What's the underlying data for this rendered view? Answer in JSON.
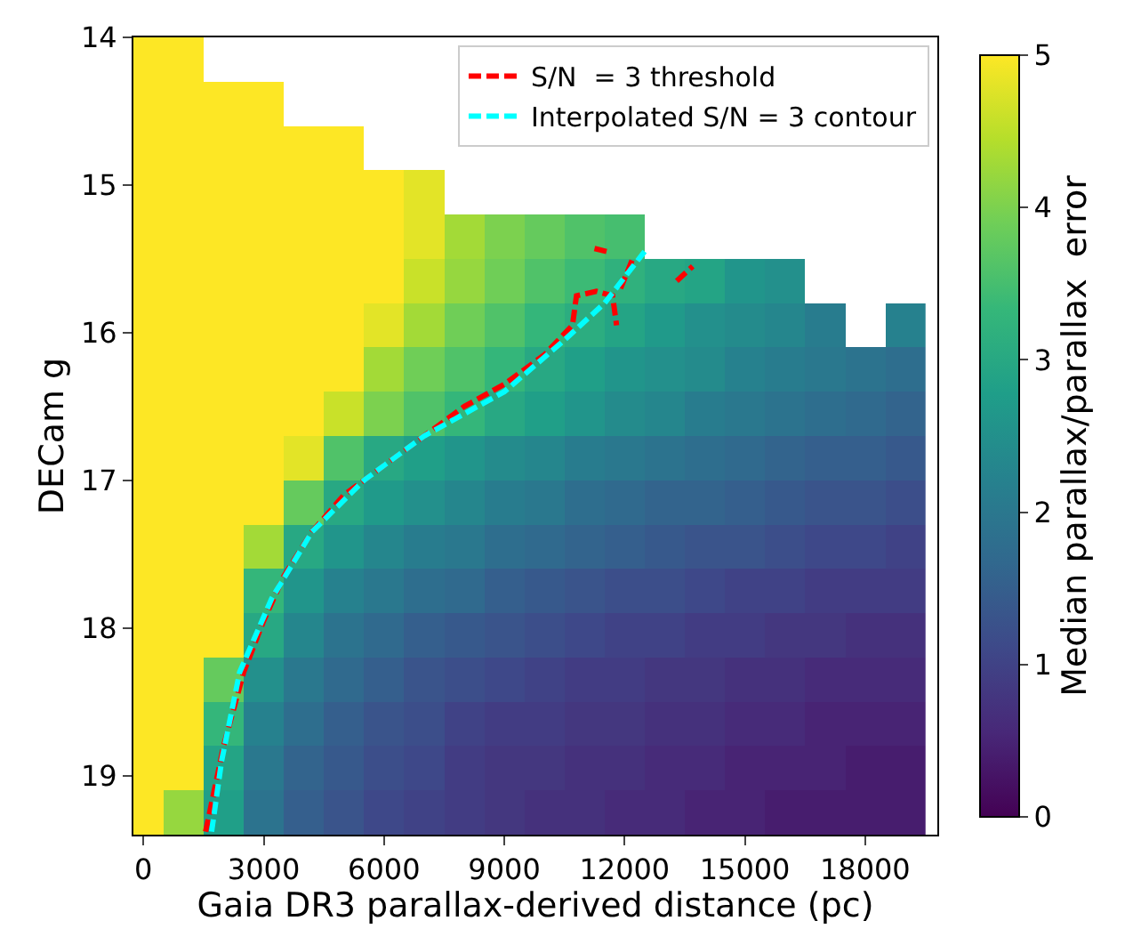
{
  "chart_data": {
    "type": "heatmap",
    "xlabel": "Gaia DR3 parallax-derived distance (pc)",
    "ylabel": "DECam g",
    "clabel": "Median parallax/parallax  error",
    "x": [
      0,
      1000,
      2000,
      3000,
      4000,
      5000,
      6000,
      7000,
      8000,
      9000,
      10000,
      11000,
      12000,
      13000,
      14000,
      15000,
      16000,
      17000,
      18000,
      19000
    ],
    "y": [
      14.15,
      14.45,
      14.75,
      15.05,
      15.35,
      15.65,
      15.95,
      16.25,
      16.55,
      16.85,
      17.15,
      17.45,
      17.75,
      18.05,
      18.35,
      18.65,
      18.95,
      19.25
    ],
    "cells": [
      [
        5,
        5,
        null,
        null,
        null,
        null,
        null,
        null,
        null,
        null,
        null,
        null,
        null,
        null,
        null,
        null,
        null,
        null,
        null,
        null
      ],
      [
        5,
        5,
        5,
        5,
        null,
        null,
        null,
        null,
        null,
        null,
        null,
        null,
        null,
        null,
        null,
        null,
        null,
        null,
        null,
        null
      ],
      [
        5,
        5,
        5,
        5,
        5,
        5,
        null,
        null,
        null,
        null,
        null,
        null,
        null,
        null,
        null,
        null,
        null,
        null,
        null,
        null
      ],
      [
        5,
        5,
        5,
        5,
        5,
        5,
        5,
        4.8,
        null,
        null,
        null,
        null,
        null,
        null,
        null,
        null,
        null,
        null,
        null,
        null
      ],
      [
        5,
        5,
        5,
        5,
        5,
        5,
        5,
        4.8,
        4.3,
        4.0,
        3.8,
        3.6,
        3.5,
        null,
        null,
        null,
        null,
        null,
        null,
        null
      ],
      [
        5,
        5,
        5,
        5,
        5,
        5,
        5,
        4.6,
        4.2,
        3.9,
        3.6,
        3.4,
        3.2,
        3.0,
        2.9,
        2.6,
        2.5,
        null,
        null,
        null
      ],
      [
        5,
        5,
        5,
        5,
        5,
        5,
        4.8,
        4.3,
        3.9,
        3.6,
        3.3,
        3.1,
        2.9,
        2.7,
        2.5,
        2.4,
        2.3,
        2.1,
        null,
        2.2
      ],
      [
        5,
        5,
        5,
        5,
        5,
        5,
        4.3,
        3.9,
        3.6,
        3.3,
        3.0,
        2.8,
        2.6,
        2.5,
        2.4,
        2.2,
        2.1,
        2.0,
        1.9,
        1.8
      ],
      [
        5,
        5,
        5,
        5,
        5,
        4.6,
        4.0,
        3.6,
        3.3,
        3.0,
        2.8,
        2.6,
        2.4,
        2.3,
        2.1,
        2.0,
        1.9,
        1.8,
        1.7,
        1.6
      ],
      [
        5,
        5,
        5,
        5,
        4.8,
        3.6,
        3.0,
        2.8,
        2.6,
        2.4,
        2.3,
        2.1,
        2.0,
        1.9,
        1.8,
        1.7,
        1.6,
        1.5,
        1.5,
        1.4
      ],
      [
        5,
        5,
        5,
        5,
        3.8,
        3.0,
        2.7,
        2.5,
        2.3,
        2.1,
        2.0,
        1.8,
        1.7,
        1.6,
        1.6,
        1.5,
        1.4,
        1.3,
        1.3,
        1.2
      ],
      [
        5,
        5,
        5,
        4.3,
        3.0,
        2.6,
        2.3,
        2.1,
        2.0,
        1.8,
        1.7,
        1.6,
        1.5,
        1.4,
        1.3,
        1.3,
        1.2,
        1.1,
        1.1,
        1.0
      ],
      [
        5,
        5,
        5,
        3.3,
        2.6,
        2.2,
        2.0,
        1.8,
        1.7,
        1.5,
        1.4,
        1.3,
        1.2,
        1.2,
        1.1,
        1.0,
        1.0,
        0.9,
        0.9,
        0.9
      ],
      [
        5,
        5,
        5,
        3.0,
        2.3,
        1.9,
        1.7,
        1.5,
        1.4,
        1.3,
        1.2,
        1.1,
        1.0,
        1.0,
        0.9,
        0.9,
        0.8,
        0.8,
        0.7,
        0.7
      ],
      [
        5,
        5,
        3.8,
        2.5,
        2.0,
        1.7,
        1.5,
        1.3,
        1.2,
        1.1,
        1.0,
        0.9,
        0.9,
        0.8,
        0.8,
        0.7,
        0.7,
        0.6,
        0.6,
        0.6
      ],
      [
        5,
        5,
        3.3,
        2.2,
        1.8,
        1.5,
        1.3,
        1.2,
        1.0,
        0.9,
        0.9,
        0.8,
        0.8,
        0.7,
        0.7,
        0.6,
        0.6,
        0.5,
        0.5,
        0.5
      ],
      [
        5,
        5,
        2.9,
        2.0,
        1.6,
        1.4,
        1.2,
        1.1,
        0.9,
        0.8,
        0.8,
        0.7,
        0.7,
        0.6,
        0.6,
        0.5,
        0.5,
        0.5,
        0.4,
        0.4
      ],
      [
        5,
        4.2,
        2.8,
        1.9,
        1.5,
        1.3,
        1.1,
        1.0,
        0.9,
        0.8,
        0.7,
        0.7,
        0.6,
        0.6,
        0.5,
        0.5,
        0.4,
        0.4,
        0.4,
        0.4
      ]
    ],
    "clim": [
      0,
      5
    ],
    "cticks": [
      0,
      1,
      2,
      3,
      4,
      5
    ],
    "xlim": [
      -250,
      19800
    ],
    "xticks": [
      0,
      3000,
      6000,
      9000,
      12000,
      15000,
      18000
    ],
    "ylim": [
      19.4,
      14
    ],
    "yticks": [
      14,
      15,
      16,
      17,
      18,
      19
    ],
    "series": [
      {
        "name": "S/N  = 3 threshold",
        "type": "line",
        "color": "#ff0000",
        "line_style": "dashed",
        "x": [
          1550,
          2000,
          2500,
          3000,
          3500,
          4200,
          5000,
          6000,
          7000,
          8000,
          9000,
          10000,
          10700,
          10800,
          11300,
          11700,
          11800,
          null,
          11250,
          11550,
          null,
          11900,
          12200,
          null,
          13300,
          13700
        ],
        "values": [
          19.38,
          18.8,
          18.3,
          17.95,
          17.65,
          17.35,
          17.1,
          16.9,
          16.7,
          16.5,
          16.35,
          16.15,
          15.95,
          15.75,
          15.72,
          15.75,
          15.95,
          null,
          15.43,
          15.45,
          null,
          15.7,
          15.5,
          null,
          15.65,
          15.55
        ]
      },
      {
        "name": "Interpolated S/N = 3 contour",
        "type": "line",
        "color": "#00ffff",
        "line_style": "dashed",
        "x": [
          1700,
          1950,
          2400,
          3200,
          4200,
          5500,
          7000,
          9000,
          10500,
          11500,
          12500
        ],
        "values": [
          19.38,
          18.9,
          18.3,
          17.8,
          17.35,
          17.0,
          16.7,
          16.4,
          16.05,
          15.8,
          15.45
        ]
      }
    ],
    "legend": "top right"
  }
}
